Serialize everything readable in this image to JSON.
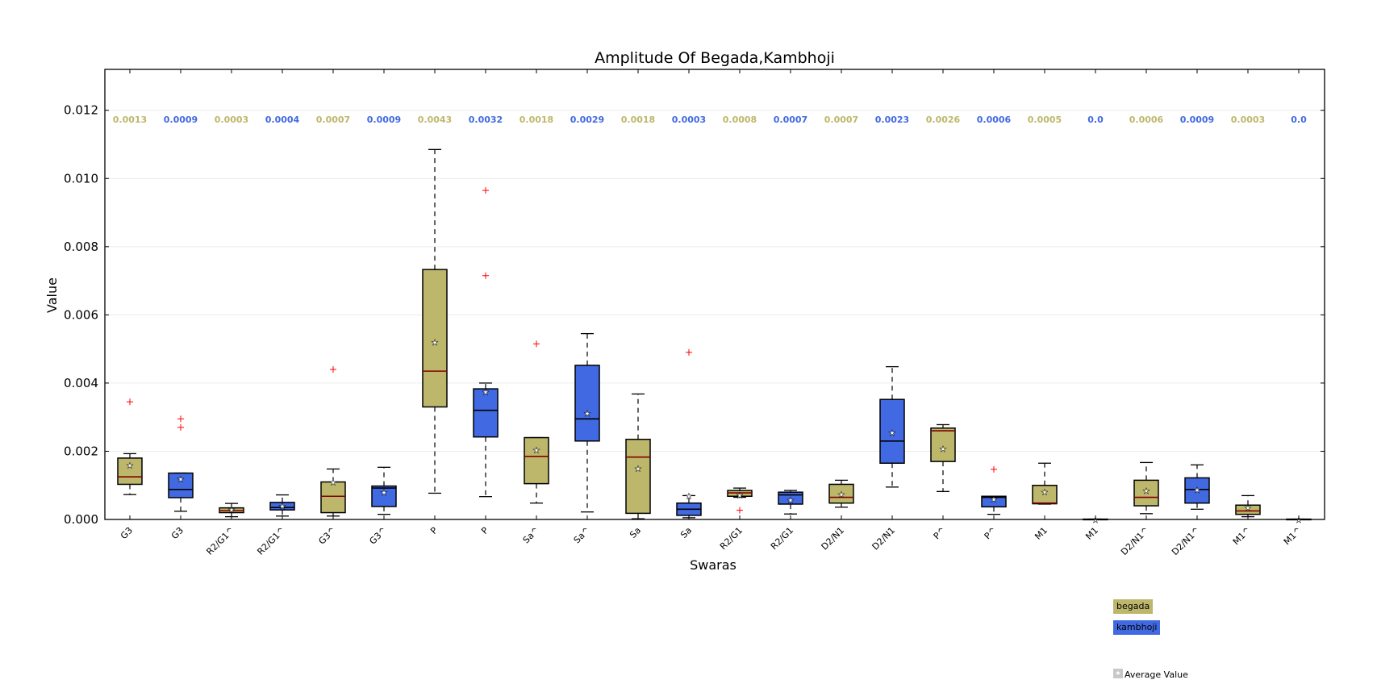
{
  "chart_data": {
    "type": "box",
    "title": "Amplitude Of Begada,Kambhoji",
    "xlabel": "Swaras",
    "ylabel": "Value",
    "ylim": [
      0,
      0.0132
    ],
    "yticks": [
      "0.000",
      "0.002",
      "0.004",
      "0.006",
      "0.008",
      "0.010",
      "0.012"
    ],
    "grid": "horizontal",
    "colors": {
      "begada": "#bdb76b",
      "kambhoji": "#4169e1",
      "outlier": "#ff0000",
      "median": "#800000"
    },
    "legend": [
      {
        "name": "begada",
        "color": "#bdb76b"
      },
      {
        "name": "kambhoji",
        "color": "#4169e1"
      }
    ],
    "legend_average": "Average Value",
    "boxes": [
      {
        "label": "G3",
        "series": "begada",
        "mean_label": "0.0013",
        "whislo": 0.00073,
        "q1": 0.00103,
        "med": 0.00125,
        "q3": 0.0018,
        "whishi": 0.00193,
        "mean": 0.0016,
        "fliers": [
          0.00345
        ]
      },
      {
        "label": "G3",
        "series": "kambhoji",
        "mean_label": "0.0009",
        "whislo": 0.00024,
        "q1": 0.00064,
        "med": 0.00088,
        "q3": 0.00136,
        "whishi": 0.00136,
        "mean": 0.0012,
        "fliers": [
          0.00295,
          0.0027
        ]
      },
      {
        "label": "R2/G1^",
        "series": "begada",
        "mean_label": "0.0003",
        "whislo": 8e-05,
        "q1": 0.0002,
        "med": 0.00026,
        "q3": 0.00034,
        "whishi": 0.00047,
        "mean": 0.0003,
        "fliers": []
      },
      {
        "label": "R2/G1^",
        "series": "kambhoji",
        "mean_label": "0.0004",
        "whislo": 0.0001,
        "q1": 0.00028,
        "med": 0.00035,
        "q3": 0.0005,
        "whishi": 0.00072,
        "mean": 0.0004,
        "fliers": []
      },
      {
        "label": "G3^",
        "series": "begada",
        "mean_label": "0.0007",
        "whislo": 0.0001,
        "q1": 0.0002,
        "med": 0.00068,
        "q3": 0.0011,
        "whishi": 0.00148,
        "mean": 0.0011,
        "fliers": [
          0.0044
        ]
      },
      {
        "label": "G3^",
        "series": "kambhoji",
        "mean_label": "0.0009",
        "whislo": 0.00015,
        "q1": 0.00038,
        "med": 0.00092,
        "q3": 0.00098,
        "whishi": 0.00153,
        "mean": 0.0008,
        "fliers": []
      },
      {
        "label": "P",
        "series": "begada",
        "mean_label": "0.0043",
        "whislo": 0.00077,
        "q1": 0.0033,
        "med": 0.00435,
        "q3": 0.00733,
        "whishi": 0.01085,
        "mean": 0.0052,
        "fliers": []
      },
      {
        "label": "P",
        "series": "kambhoji",
        "mean_label": "0.0032",
        "whislo": 0.00067,
        "q1": 0.00242,
        "med": 0.0032,
        "q3": 0.00383,
        "whishi": 0.004,
        "mean": 0.00375,
        "fliers": [
          0.00965,
          0.00715
        ]
      },
      {
        "label": "Sa^",
        "series": "begada",
        "mean_label": "0.0018",
        "whislo": 0.00048,
        "q1": 0.00105,
        "med": 0.00185,
        "q3": 0.0024,
        "whishi": 0.0024,
        "mean": 0.00205,
        "fliers": [
          0.00515
        ]
      },
      {
        "label": "Sa^",
        "series": "kambhoji",
        "mean_label": "0.0029",
        "whislo": 0.00022,
        "q1": 0.0023,
        "med": 0.00295,
        "q3": 0.00452,
        "whishi": 0.00545,
        "mean": 0.00312,
        "fliers": []
      },
      {
        "label": "Sa",
        "series": "begada",
        "mean_label": "0.0018",
        "whislo": 2e-05,
        "q1": 0.00018,
        "med": 0.00183,
        "q3": 0.00235,
        "whishi": 0.00368,
        "mean": 0.0015,
        "fliers": []
      },
      {
        "label": "Sa",
        "series": "kambhoji",
        "mean_label": "0.0003",
        "whislo": 5e-05,
        "q1": 0.00012,
        "med": 0.0003,
        "q3": 0.00048,
        "whishi": 0.0007,
        "mean": 0.0007,
        "fliers": [
          0.0049
        ]
      },
      {
        "label": "R2/G1",
        "series": "begada",
        "mean_label": "0.0008",
        "whislo": 0.00065,
        "q1": 0.00068,
        "med": 0.00078,
        "q3": 0.00085,
        "whishi": 0.00092,
        "mean": 0.00072,
        "fliers": [
          0.00027
        ]
      },
      {
        "label": "R2/G1",
        "series": "kambhoji",
        "mean_label": "0.0007",
        "whislo": 0.00016,
        "q1": 0.00045,
        "med": 0.00072,
        "q3": 0.0008,
        "whishi": 0.00085,
        "mean": 0.00058,
        "fliers": []
      },
      {
        "label": "D2/N1",
        "series": "begada",
        "mean_label": "0.0007",
        "whislo": 0.00036,
        "q1": 0.00048,
        "med": 0.00065,
        "q3": 0.00103,
        "whishi": 0.00115,
        "mean": 0.00075,
        "fliers": []
      },
      {
        "label": "D2/N1",
        "series": "kambhoji",
        "mean_label": "0.0023",
        "whislo": 0.00095,
        "q1": 0.00165,
        "med": 0.0023,
        "q3": 0.00352,
        "whishi": 0.00448,
        "mean": 0.00255,
        "fliers": []
      },
      {
        "label": "P^",
        "series": "begada",
        "mean_label": "0.0026",
        "whislo": 0.00082,
        "q1": 0.0017,
        "med": 0.0026,
        "q3": 0.00268,
        "whishi": 0.00278,
        "mean": 0.00208,
        "fliers": []
      },
      {
        "label": "P^",
        "series": "kambhoji",
        "mean_label": "0.0006",
        "whislo": 0.00015,
        "q1": 0.00037,
        "med": 0.00065,
        "q3": 0.00068,
        "whishi": 0.00068,
        "mean": 0.0006,
        "fliers": [
          0.00147
        ]
      },
      {
        "label": "M1",
        "series": "begada",
        "mean_label": "0.0005",
        "whislo": 0.00045,
        "q1": 0.00046,
        "med": 0.00048,
        "q3": 0.001,
        "whishi": 0.00165,
        "mean": 0.00082,
        "fliers": []
      },
      {
        "label": "M1",
        "series": "kambhoji",
        "mean_label": "0.0",
        "whislo": 0.0,
        "q1": 0.0,
        "med": 0.0,
        "q3": 1e-05,
        "whishi": 1e-05,
        "mean": 0.0,
        "fliers": []
      },
      {
        "label": "D2/N1^",
        "series": "begada",
        "mean_label": "0.0006",
        "whislo": 0.00017,
        "q1": 0.0004,
        "med": 0.00065,
        "q3": 0.00115,
        "whishi": 0.00167,
        "mean": 0.00085,
        "fliers": []
      },
      {
        "label": "D2/N1^",
        "series": "kambhoji",
        "mean_label": "0.0009",
        "whislo": 0.0003,
        "q1": 0.00048,
        "med": 0.00088,
        "q3": 0.00122,
        "whishi": 0.0016,
        "mean": 0.00088,
        "fliers": []
      },
      {
        "label": "M1^",
        "series": "begada",
        "mean_label": "0.0003",
        "whislo": 8e-05,
        "q1": 0.00015,
        "med": 0.00025,
        "q3": 0.00042,
        "whishi": 0.0007,
        "mean": 0.00035,
        "fliers": []
      },
      {
        "label": "M1^",
        "series": "kambhoji",
        "mean_label": "0.0",
        "whislo": 0.0,
        "q1": 0.0,
        "med": 0.0,
        "q3": 1e-05,
        "whishi": 1e-05,
        "mean": 0.0,
        "fliers": []
      }
    ]
  }
}
